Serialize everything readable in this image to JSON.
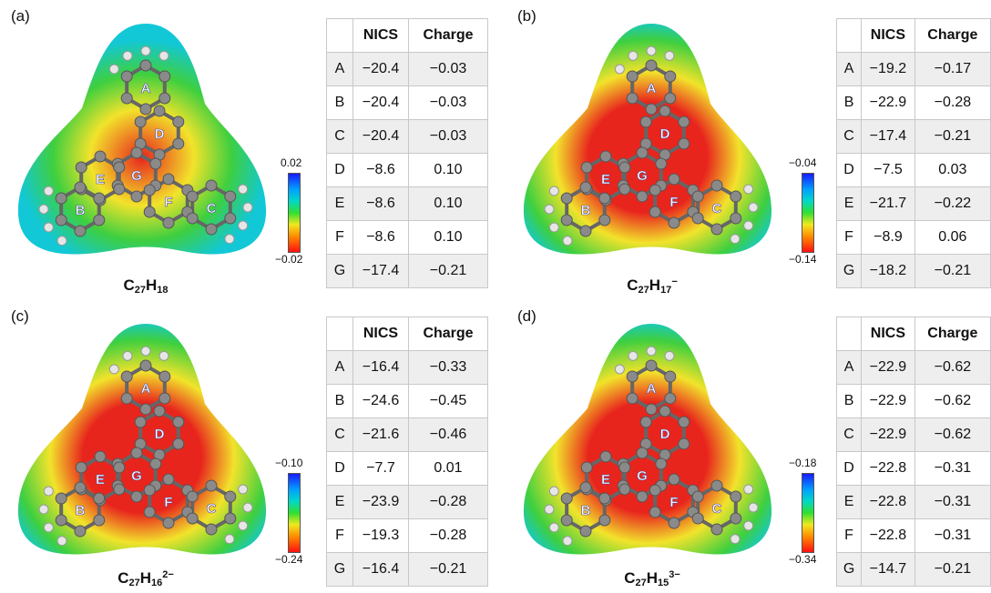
{
  "colors": {
    "red": "#e8251d",
    "yellow": "#f2e32b",
    "green": "#3fcf3f",
    "cyan": "#12c8d6",
    "blue": "#1a1aff",
    "atom": "#8a8a8a",
    "h_atom": "#e6e6e6"
  },
  "icons": [
    "molecule-esp-map"
  ],
  "columns": {
    "col0": "",
    "col1": "NICS",
    "col2": "Charge"
  },
  "panels": [
    {
      "label": "(a)",
      "formula": {
        "base": "C",
        "n1": "27",
        "mid": "H",
        "n2": "18",
        "charge": ""
      },
      "scale": {
        "top": "0.02",
        "bottom": "−0.02"
      },
      "rows": [
        {
          "ring": "A",
          "nics": "−20.4",
          "charge": "−0.03"
        },
        {
          "ring": "B",
          "nics": "−20.4",
          "charge": "−0.03"
        },
        {
          "ring": "C",
          "nics": "−20.4",
          "charge": "−0.03"
        },
        {
          "ring": "D",
          "nics": "−8.6",
          "charge": "0.10"
        },
        {
          "ring": "E",
          "nics": "−8.6",
          "charge": "0.10"
        },
        {
          "ring": "F",
          "nics": "−8.6",
          "charge": "0.10"
        },
        {
          "ring": "G",
          "nics": "−17.4",
          "charge": "−0.21"
        }
      ]
    },
    {
      "label": "(b)",
      "formula": {
        "base": "C",
        "n1": "27",
        "mid": "H",
        "n2": "17",
        "charge": "−"
      },
      "scale": {
        "top": "−0.04",
        "bottom": "−0.14"
      },
      "rows": [
        {
          "ring": "A",
          "nics": "−19.2",
          "charge": "−0.17"
        },
        {
          "ring": "B",
          "nics": "−22.9",
          "charge": "−0.28"
        },
        {
          "ring": "C",
          "nics": "−17.4",
          "charge": "−0.21"
        },
        {
          "ring": "D",
          "nics": "−7.5",
          "charge": "0.03"
        },
        {
          "ring": "E",
          "nics": "−21.7",
          "charge": "−0.22"
        },
        {
          "ring": "F",
          "nics": "−8.9",
          "charge": "0.06"
        },
        {
          "ring": "G",
          "nics": "−18.2",
          "charge": "−0.21"
        }
      ]
    },
    {
      "label": "(c)",
      "formula": {
        "base": "C",
        "n1": "27",
        "mid": "H",
        "n2": "16",
        "charge": "2−"
      },
      "scale": {
        "top": "−0.10",
        "bottom": "−0.24"
      },
      "rows": [
        {
          "ring": "A",
          "nics": "−16.4",
          "charge": "−0.33"
        },
        {
          "ring": "B",
          "nics": "−24.6",
          "charge": "−0.45"
        },
        {
          "ring": "C",
          "nics": "−21.6",
          "charge": "−0.46"
        },
        {
          "ring": "D",
          "nics": "−7.7",
          "charge": "0.01"
        },
        {
          "ring": "E",
          "nics": "−23.9",
          "charge": "−0.28"
        },
        {
          "ring": "F",
          "nics": "−19.3",
          "charge": "−0.28"
        },
        {
          "ring": "G",
          "nics": "−16.4",
          "charge": "−0.21"
        }
      ]
    },
    {
      "label": "(d)",
      "formula": {
        "base": "C",
        "n1": "27",
        "mid": "H",
        "n2": "15",
        "charge": "3−"
      },
      "scale": {
        "top": "−0.18",
        "bottom": "−0.34"
      },
      "rows": [
        {
          "ring": "A",
          "nics": "−22.9",
          "charge": "−0.62"
        },
        {
          "ring": "B",
          "nics": "−22.9",
          "charge": "−0.62"
        },
        {
          "ring": "C",
          "nics": "−22.9",
          "charge": "−0.62"
        },
        {
          "ring": "D",
          "nics": "−22.8",
          "charge": "−0.31"
        },
        {
          "ring": "E",
          "nics": "−22.8",
          "charge": "−0.31"
        },
        {
          "ring": "F",
          "nics": "−22.8",
          "charge": "−0.31"
        },
        {
          "ring": "G",
          "nics": "−14.7",
          "charge": "−0.21"
        }
      ]
    }
  ]
}
